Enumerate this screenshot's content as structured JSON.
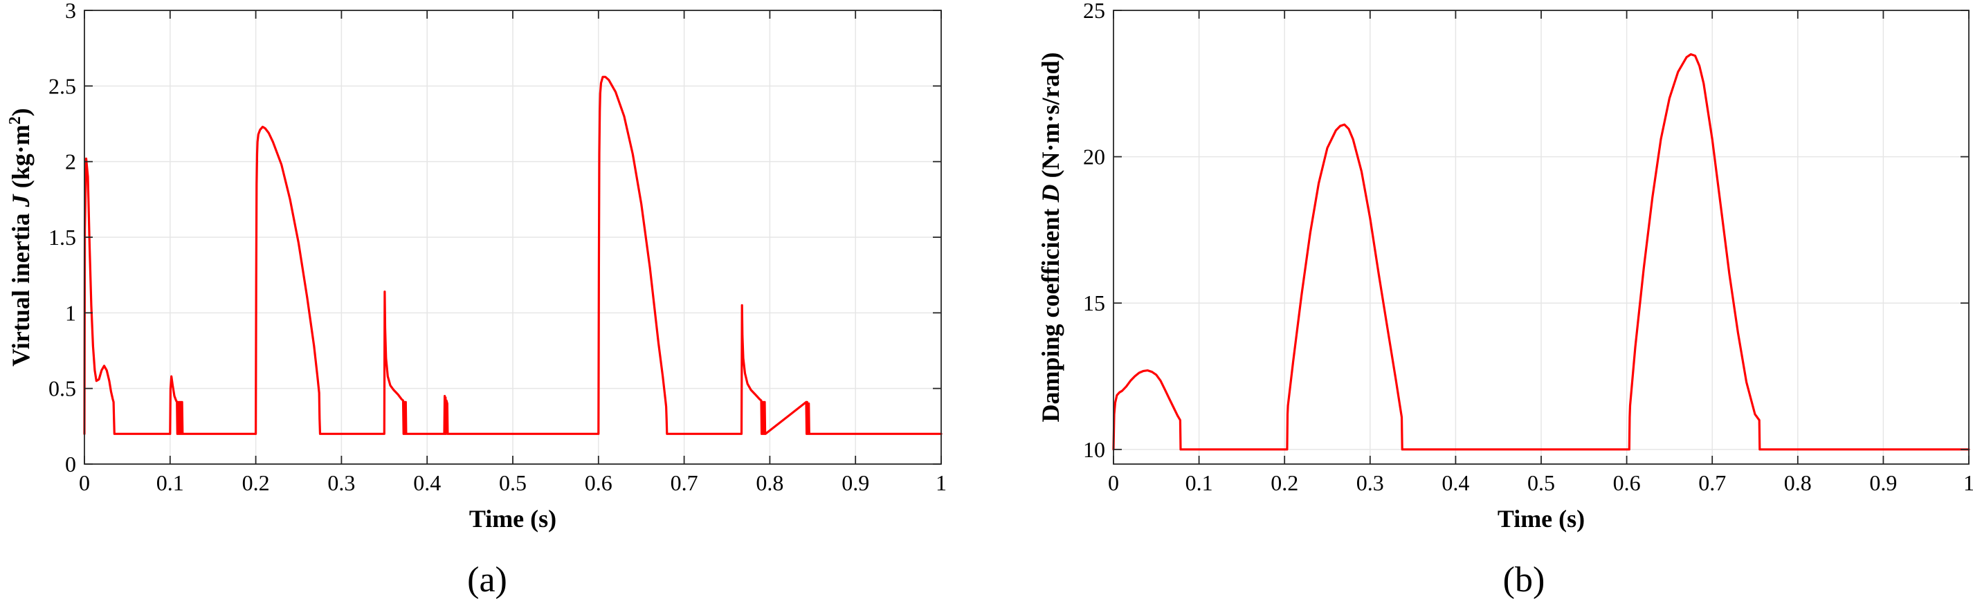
{
  "chart_data": [
    {
      "panel_label": "(a)",
      "type": "line",
      "xlabel": "Time (s)",
      "ylabel": {
        "before": "Virtual inertia ",
        "symbol": "J",
        "unit_before": " (kg·m",
        "unit_sup": "2",
        "unit_after": ")"
      },
      "xlim": [
        0,
        1
      ],
      "ylim": [
        0,
        3
      ],
      "xticks": [
        0,
        0.1,
        0.2,
        0.3,
        0.4,
        0.5,
        0.6,
        0.7,
        0.8,
        0.9,
        1
      ],
      "xtick_labels": [
        "0",
        "0.1",
        "0.2",
        "0.3",
        "0.4",
        "0.5",
        "0.6",
        "0.7",
        "0.8",
        "0.9",
        "1"
      ],
      "yticks": [
        0,
        0.5,
        1,
        1.5,
        2,
        2.5,
        3
      ],
      "ytick_labels": [
        "0",
        "0.5",
        "1",
        "1.5",
        "2",
        "2.5",
        "3"
      ],
      "grid": true,
      "series": [
        {
          "color": "#ff0000",
          "x": [
            0,
            0.0005,
            0.002,
            0.004,
            0.006,
            0.008,
            0.01,
            0.012,
            0.014,
            0.017,
            0.02,
            0.023,
            0.026,
            0.029,
            0.031,
            0.033,
            0.034,
            0.0345,
            0.035,
            0.1,
            0.1005,
            0.1015,
            0.103,
            0.105,
            0.107,
            0.108,
            0.1085,
            0.109,
            0.1095,
            0.11,
            0.1105,
            0.111,
            0.1115,
            0.112,
            0.1125,
            0.113,
            0.1135,
            0.114,
            0.1145,
            0.2,
            0.2005,
            0.201,
            0.2015,
            0.202,
            0.203,
            0.205,
            0.208,
            0.211,
            0.215,
            0.22,
            0.23,
            0.24,
            0.25,
            0.26,
            0.268,
            0.272,
            0.274,
            0.2745,
            0.275,
            0.35,
            0.3505,
            0.351,
            0.352,
            0.354,
            0.357,
            0.361,
            0.366,
            0.37,
            0.372,
            0.3725,
            0.373,
            0.3735,
            0.374,
            0.3745,
            0.375,
            0.3755,
            0.376,
            0.42,
            0.4205,
            0.421,
            0.4215,
            0.422,
            0.4225,
            0.4235,
            0.424,
            0.6,
            0.6005,
            0.601,
            0.6015,
            0.602,
            0.603,
            0.605,
            0.608,
            0.612,
            0.62,
            0.63,
            0.64,
            0.65,
            0.66,
            0.67,
            0.675,
            0.678,
            0.679,
            0.6795,
            0.68,
            0.767,
            0.7675,
            0.768,
            0.769,
            0.771,
            0.774,
            0.778,
            0.783,
            0.788,
            0.79,
            0.7905,
            0.791,
            0.7915,
            0.792,
            0.7925,
            0.793,
            0.7935,
            0.794,
            0.7945,
            0.795,
            0.8425,
            0.843,
            0.8435,
            0.844,
            0.8445,
            0.845,
            0.8455,
            0.846,
            1
          ],
          "y": [
            0.2,
            1.55,
            2.02,
            1.9,
            1.45,
            1.05,
            0.78,
            0.62,
            0.55,
            0.56,
            0.62,
            0.65,
            0.62,
            0.55,
            0.48,
            0.43,
            0.41,
            0.3,
            0.2,
            0.2,
            0.5,
            0.58,
            0.52,
            0.45,
            0.42,
            0.41,
            0.2,
            0.41,
            0.2,
            0.41,
            0.2,
            0.41,
            0.2,
            0.41,
            0.2,
            0.41,
            0.2,
            0.41,
            0.2,
            0.2,
            1.2,
            1.85,
            2.05,
            2.13,
            2.18,
            2.21,
            2.23,
            2.22,
            2.19,
            2.13,
            1.98,
            1.75,
            1.46,
            1.1,
            0.78,
            0.58,
            0.47,
            0.3,
            0.2,
            0.2,
            1.14,
            0.9,
            0.7,
            0.58,
            0.52,
            0.49,
            0.46,
            0.43,
            0.42,
            0.2,
            0.41,
            0.2,
            0.41,
            0.2,
            0.41,
            0.2,
            0.2,
            0.2,
            0.45,
            0.2,
            0.44,
            0.2,
            0.42,
            0.4,
            0.2,
            0.2,
            1.3,
            2.05,
            2.33,
            2.45,
            2.52,
            2.56,
            2.56,
            2.54,
            2.46,
            2.3,
            2.05,
            1.72,
            1.3,
            0.8,
            0.58,
            0.43,
            0.38,
            0.3,
            0.2,
            0.2,
            1.05,
            0.85,
            0.7,
            0.6,
            0.53,
            0.49,
            0.46,
            0.43,
            0.42,
            0.2,
            0.41,
            0.2,
            0.41,
            0.2,
            0.41,
            0.2,
            0.41,
            0.2,
            0.2,
            0.41,
            0.2,
            0.41,
            0.2,
            0.4,
            0.2,
            0.4,
            0.2,
            0.2
          ]
        }
      ]
    },
    {
      "panel_label": "(b)",
      "type": "line",
      "xlabel": "Time (s)",
      "ylabel": {
        "before": "Damping coefficient ",
        "symbol": "D",
        "unit_before": " (N·m·s/rad)",
        "unit_sup": "",
        "unit_after": ""
      },
      "xlim": [
        0,
        1
      ],
      "ylim": [
        9.5,
        25
      ],
      "xticks": [
        0,
        0.1,
        0.2,
        0.3,
        0.4,
        0.5,
        0.6,
        0.7,
        0.8,
        0.9,
        1
      ],
      "xtick_labels": [
        "0",
        "0.1",
        "0.2",
        "0.3",
        "0.4",
        "0.5",
        "0.6",
        "0.7",
        "0.8",
        "0.9",
        "1"
      ],
      "yticks": [
        10,
        15,
        20,
        25
      ],
      "ytick_labels": [
        "10",
        "15",
        "20",
        "25"
      ],
      "grid": true,
      "series": [
        {
          "color": "#ff0000",
          "x": [
            0,
            0.0008,
            0.002,
            0.004,
            0.007,
            0.01,
            0.015,
            0.02,
            0.025,
            0.03,
            0.035,
            0.04,
            0.045,
            0.05,
            0.055,
            0.06,
            0.065,
            0.07,
            0.075,
            0.078,
            0.0785,
            0.079,
            0.203,
            0.2035,
            0.204,
            0.21,
            0.22,
            0.23,
            0.24,
            0.25,
            0.26,
            0.265,
            0.27,
            0.275,
            0.28,
            0.29,
            0.3,
            0.31,
            0.32,
            0.33,
            0.337,
            0.3375,
            0.338,
            0.603,
            0.6035,
            0.604,
            0.61,
            0.62,
            0.63,
            0.64,
            0.65,
            0.66,
            0.67,
            0.675,
            0.68,
            0.685,
            0.69,
            0.7,
            0.71,
            0.72,
            0.73,
            0.74,
            0.75,
            0.755,
            0.7555,
            0.756,
            1
          ],
          "y": [
            10,
            11.2,
            11.6,
            11.85,
            11.95,
            12,
            12.15,
            12.35,
            12.5,
            12.62,
            12.68,
            12.7,
            12.65,
            12.55,
            12.35,
            12.05,
            11.75,
            11.45,
            11.15,
            11,
            10,
            10,
            10,
            11.2,
            11.5,
            13,
            15.3,
            17.4,
            19.1,
            20.3,
            20.9,
            21.05,
            21.1,
            20.95,
            20.6,
            19.5,
            17.9,
            16,
            14.2,
            12.4,
            11.1,
            10,
            10,
            10,
            11.1,
            11.5,
            13.5,
            16.2,
            18.6,
            20.6,
            22,
            22.9,
            23.4,
            23.5,
            23.45,
            23.1,
            22.5,
            20.6,
            18.3,
            16,
            14,
            12.3,
            11.2,
            11,
            10,
            10,
            10
          ]
        }
      ]
    }
  ]
}
